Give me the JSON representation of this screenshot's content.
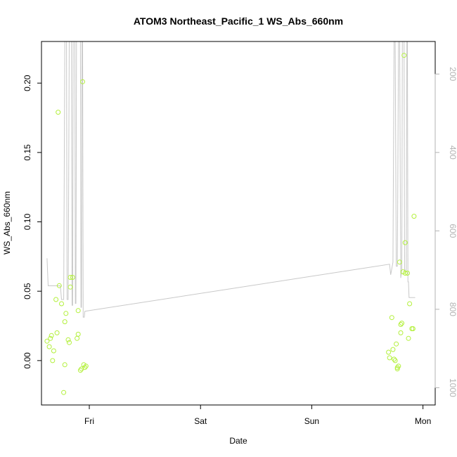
{
  "chart_data": {
    "type": "scatter",
    "title": "ATOM3 Northeast_Pacific_1 WS_Abs_660nm",
    "xlabel": "Date",
    "ylabel": "WS_Abs_660nm",
    "xlim": [
      -0.43,
      3.11
    ],
    "ylim": [
      -0.032,
      0.23
    ],
    "x_ticks": [
      {
        "value": 0,
        "label": "Fri"
      },
      {
        "value": 1,
        "label": "Sat"
      },
      {
        "value": 2,
        "label": "Sun"
      },
      {
        "value": 3,
        "label": "Mon"
      }
    ],
    "y_ticks": [
      {
        "value": 0.0,
        "label": "0.00"
      },
      {
        "value": 0.05,
        "label": "0.05"
      },
      {
        "value": 0.1,
        "label": "0.10"
      },
      {
        "value": 0.15,
        "label": "0.15"
      },
      {
        "value": 0.2,
        "label": "0.20"
      }
    ],
    "y2_ticks": [
      {
        "value": 200,
        "label": "200"
      },
      {
        "value": 400,
        "label": "400"
      },
      {
        "value": 600,
        "label": "600"
      },
      {
        "value": 800,
        "label": "800"
      },
      {
        "value": 1000,
        "label": "1000"
      }
    ],
    "y2lim": [
      117,
      1044
    ],
    "y2_reversed": true,
    "grid": false,
    "series": [
      {
        "kind": "points",
        "color": "#b3f03c",
        "points": [
          [
            -0.38,
            0.014
          ],
          [
            -0.36,
            0.01
          ],
          [
            -0.35,
            0.016
          ],
          [
            -0.34,
            0.018
          ],
          [
            -0.33,
            0.0
          ],
          [
            -0.32,
            0.007
          ],
          [
            -0.3,
            0.044
          ],
          [
            -0.29,
            0.02
          ],
          [
            -0.28,
            0.179
          ],
          [
            -0.27,
            0.054
          ],
          [
            -0.25,
            0.041
          ],
          [
            -0.23,
            -0.023
          ],
          [
            -0.22,
            -0.003
          ],
          [
            -0.22,
            0.028
          ],
          [
            -0.21,
            0.034
          ],
          [
            -0.19,
            0.015
          ],
          [
            -0.18,
            0.013
          ],
          [
            -0.17,
            0.053
          ],
          [
            -0.17,
            0.06
          ],
          [
            -0.15,
            0.06
          ],
          [
            -0.11,
            0.016
          ],
          [
            -0.1,
            0.036
          ],
          [
            -0.1,
            0.019
          ],
          [
            -0.08,
            -0.007
          ],
          [
            -0.07,
            -0.006
          ],
          [
            -0.06,
            0.201
          ],
          [
            -0.05,
            -0.003
          ],
          [
            -0.04,
            -0.005
          ],
          [
            -0.03,
            -0.004
          ],
          [
            2.69,
            0.006
          ],
          [
            2.7,
            0.002
          ],
          [
            2.72,
            0.031
          ],
          [
            2.73,
            0.008
          ],
          [
            2.74,
            0.001
          ],
          [
            2.75,
            0.0
          ],
          [
            2.76,
            0.012
          ],
          [
            2.77,
            -0.005
          ],
          [
            2.77,
            -0.006
          ],
          [
            2.78,
            -0.004
          ],
          [
            2.79,
            0.071
          ],
          [
            2.8,
            0.02
          ],
          [
            2.8,
            0.026
          ],
          [
            2.81,
            0.027
          ],
          [
            2.82,
            0.064
          ],
          [
            2.83,
            0.22
          ],
          [
            2.84,
            0.085
          ],
          [
            2.84,
            0.063
          ],
          [
            2.86,
            0.063
          ],
          [
            2.87,
            0.016
          ],
          [
            2.88,
            0.041
          ],
          [
            2.9,
            0.023
          ],
          [
            2.91,
            0.023
          ],
          [
            2.92,
            0.104
          ]
        ]
      },
      {
        "kind": "line",
        "axis": "right",
        "color": "#c8c8c8",
        "points": [
          [
            -0.38,
            670
          ],
          [
            -0.37,
            740
          ],
          [
            -0.26,
            740
          ],
          [
            -0.25,
            775
          ],
          [
            -0.23,
            775
          ],
          [
            -0.22,
            117
          ],
          [
            -0.205,
            117
          ],
          [
            -0.2,
            775
          ],
          [
            -0.19,
            775
          ],
          [
            -0.18,
            117
          ],
          [
            -0.16,
            117
          ],
          [
            -0.155,
            790
          ],
          [
            -0.15,
            790
          ],
          [
            -0.145,
            117
          ],
          [
            -0.13,
            117
          ],
          [
            -0.125,
            785
          ],
          [
            -0.12,
            785
          ],
          [
            -0.115,
            117
          ],
          [
            -0.08,
            117
          ],
          [
            -0.075,
            795
          ],
          [
            -0.07,
            795
          ],
          [
            -0.065,
            117
          ],
          [
            -0.06,
            117
          ],
          [
            -0.055,
            820
          ],
          [
            -0.045,
            820
          ],
          [
            -0.04,
            805
          ],
          [
            2.7,
            685
          ],
          [
            2.71,
            712
          ],
          [
            2.73,
            680
          ],
          [
            2.74,
            117
          ],
          [
            2.75,
            117
          ],
          [
            2.76,
            690
          ],
          [
            2.77,
            690
          ],
          [
            2.78,
            117
          ],
          [
            2.79,
            117
          ],
          [
            2.8,
            720
          ],
          [
            2.81,
            700
          ],
          [
            2.815,
            117
          ],
          [
            2.83,
            117
          ],
          [
            2.835,
            700
          ],
          [
            2.85,
            700
          ],
          [
            2.855,
            117
          ],
          [
            2.86,
            117
          ],
          [
            2.865,
            730
          ],
          [
            2.87,
            730
          ],
          [
            2.875,
            770
          ],
          [
            2.93,
            770
          ]
        ]
      }
    ]
  }
}
